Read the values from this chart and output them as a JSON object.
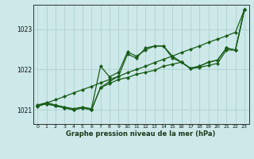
{
  "xlabel": "Graphe pression niveau de la mer (hPa)",
  "background_color": "#cce8e8",
  "grid_color": "#aacccc",
  "line_color": "#1a5c1a",
  "x_ticks": [
    0,
    1,
    2,
    3,
    4,
    5,
    6,
    7,
    8,
    9,
    10,
    11,
    12,
    13,
    14,
    15,
    16,
    17,
    18,
    19,
    20,
    21,
    22,
    23
  ],
  "y_ticks": [
    1021,
    1022,
    1023
  ],
  "ylim": [
    1020.65,
    1023.6
  ],
  "xlim": [
    -0.5,
    23.5
  ],
  "line1": [
    1021.1,
    1021.15,
    1021.1,
    1021.05,
    1021.0,
    1021.05,
    1021.0,
    1021.55,
    1021.65,
    1021.75,
    1021.8,
    1021.88,
    1021.93,
    1021.98,
    1022.08,
    1022.13,
    1022.18,
    1022.02,
    1022.05,
    1022.1,
    1022.15,
    1022.48,
    1022.48,
    1023.48
  ],
  "line2": [
    1021.12,
    1021.18,
    1021.12,
    1021.07,
    1021.03,
    1021.07,
    1021.03,
    1022.08,
    1021.82,
    1021.93,
    1022.43,
    1022.33,
    1022.48,
    1022.58,
    1022.58,
    1022.28,
    1022.18,
    1022.03,
    1022.08,
    1022.18,
    1022.23,
    1022.53,
    1022.48,
    1023.48
  ],
  "line3": [
    1021.1,
    1021.15,
    1021.1,
    1021.05,
    1021.0,
    1021.05,
    1021.0,
    1021.55,
    1021.7,
    1021.83,
    1022.38,
    1022.28,
    1022.53,
    1022.58,
    1022.58,
    1022.33,
    1022.18,
    1022.03,
    1022.08,
    1022.18,
    1022.23,
    1022.53,
    1022.48,
    1023.48
  ],
  "line4_straight": [
    1021.08,
    1021.17,
    1021.25,
    1021.33,
    1021.42,
    1021.5,
    1021.58,
    1021.67,
    1021.75,
    1021.83,
    1021.92,
    1022.0,
    1022.08,
    1022.17,
    1022.25,
    1022.33,
    1022.42,
    1022.5,
    1022.58,
    1022.67,
    1022.75,
    1022.83,
    1022.92,
    1023.48
  ]
}
